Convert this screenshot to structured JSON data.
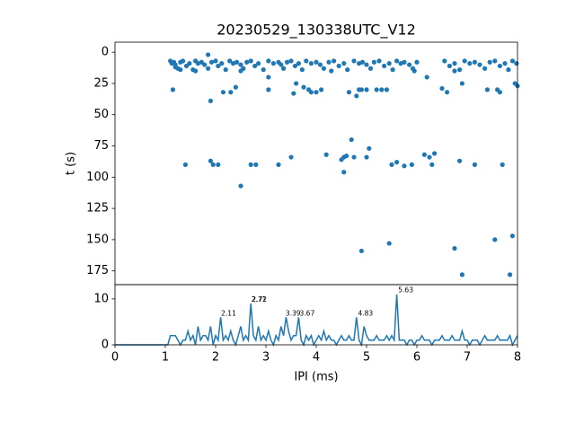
{
  "chart_data": [
    {
      "type": "scatter",
      "title": "20230529_130338UTC_V12",
      "ylabel": "t (s)",
      "color": "#1f77b4",
      "xlim": [
        0,
        8
      ],
      "ylim": [
        186,
        -8
      ],
      "yticks": [
        0,
        25,
        50,
        75,
        100,
        125,
        150,
        175
      ],
      "x": [
        1.1,
        1.13,
        1.17,
        1.2,
        1.25,
        1.3,
        1.35,
        1.42,
        1.48,
        1.55,
        1.6,
        1.65,
        1.72,
        1.78,
        1.85,
        1.92,
        2.0,
        2.05,
        2.12,
        2.2,
        2.28,
        2.35,
        2.42,
        2.5,
        2.55,
        2.62,
        2.7,
        2.78,
        2.85,
        2.95,
        3.05,
        3.15,
        3.25,
        3.3,
        3.35,
        3.42,
        3.5,
        3.58,
        3.65,
        3.72,
        3.8,
        3.9,
        4.0,
        4.08,
        4.15,
        4.25,
        4.35,
        4.45,
        4.55,
        4.62,
        4.75,
        4.85,
        4.92,
        5.0,
        5.08,
        5.15,
        5.25,
        5.35,
        5.45,
        5.52,
        5.6,
        5.68,
        5.75,
        5.85,
        5.92,
        6.0,
        6.55,
        6.65,
        6.75,
        6.85,
        6.95,
        7.05,
        7.15,
        7.25,
        7.35,
        7.45,
        7.55,
        7.65,
        7.75,
        7.82,
        7.9,
        7.98,
        1.15,
        1.4,
        1.9,
        1.95,
        2.05,
        1.9,
        1.85,
        2.15,
        2.3,
        2.4,
        2.5,
        2.7,
        2.8,
        3.05,
        3.25,
        3.5,
        3.75,
        3.85,
        3.9,
        4.0,
        4.1,
        4.2,
        4.5,
        4.55,
        4.6,
        4.55,
        4.7,
        4.75,
        4.8,
        4.85,
        4.9,
        5.0,
        5.05,
        4.9,
        5.0,
        5.2,
        5.3,
        5.4,
        5.45,
        5.5,
        5.6,
        5.75,
        5.9,
        6.15,
        6.25,
        6.3,
        6.35,
        6.5,
        6.6,
        6.75,
        6.85,
        6.9,
        7.15,
        7.4,
        7.55,
        7.6,
        7.65,
        7.7,
        7.85,
        7.9,
        8.0,
        7.95,
        4.65,
        6.2,
        6.9,
        6.75,
        5.95,
        4.3,
        3.6,
        3.55,
        3.05,
        2.5,
        1.6,
        1.2,
        1.3
      ],
      "values": [
        7,
        9,
        8,
        10,
        13,
        8,
        7,
        11,
        9,
        14,
        7,
        9,
        8,
        10,
        13,
        8,
        7,
        11,
        9,
        14,
        7,
        9,
        8,
        10,
        13,
        8,
        7,
        11,
        9,
        14,
        7,
        9,
        8,
        10,
        13,
        8,
        7,
        11,
        9,
        14,
        7,
        9,
        8,
        10,
        13,
        8,
        7,
        11,
        9,
        14,
        7,
        9,
        8,
        10,
        13,
        8,
        7,
        11,
        9,
        14,
        7,
        9,
        8,
        10,
        13,
        8,
        7,
        11,
        9,
        14,
        7,
        9,
        8,
        10,
        13,
        8,
        7,
        11,
        9,
        14,
        7,
        9,
        30,
        90,
        87,
        90,
        90,
        39,
        2,
        32,
        32,
        28,
        107,
        90,
        90,
        30,
        90,
        84,
        28,
        30,
        32,
        32,
        30,
        82,
        86,
        84,
        83,
        96,
        70,
        84,
        35,
        30,
        159,
        84,
        77,
        30,
        30,
        30,
        30,
        30,
        153,
        90,
        88,
        91,
        90,
        82,
        84,
        90,
        81,
        29,
        32,
        157,
        87,
        178,
        90,
        30,
        150,
        30,
        32,
        90,
        178,
        147,
        27,
        25,
        32,
        20,
        25,
        15,
        15,
        15,
        25,
        33,
        20,
        15,
        15,
        12,
        14
      ]
    },
    {
      "type": "line",
      "xlabel": "IPI (ms)",
      "color": "#1f77b4",
      "xlim": [
        0,
        8
      ],
      "xticks": [
        0,
        1,
        2,
        3,
        4,
        5,
        6,
        7,
        8
      ],
      "ylim": [
        0,
        13.1
      ],
      "yticks": [
        0,
        10
      ],
      "x": [
        0,
        1.05,
        1.1,
        1.15,
        1.2,
        1.25,
        1.3,
        1.35,
        1.4,
        1.45,
        1.5,
        1.55,
        1.6,
        1.65,
        1.7,
        1.75,
        1.8,
        1.85,
        1.9,
        1.95,
        2.0,
        2.05,
        2.1,
        2.15,
        2.2,
        2.25,
        2.3,
        2.35,
        2.4,
        2.45,
        2.5,
        2.55,
        2.6,
        2.65,
        2.7,
        2.75,
        2.8,
        2.85,
        2.9,
        2.95,
        3.0,
        3.05,
        3.1,
        3.15,
        3.2,
        3.25,
        3.3,
        3.35,
        3.4,
        3.45,
        3.5,
        3.55,
        3.6,
        3.65,
        3.7,
        3.75,
        3.8,
        3.85,
        3.9,
        3.95,
        4.0,
        4.05,
        4.1,
        4.15,
        4.2,
        4.25,
        4.3,
        4.35,
        4.4,
        4.45,
        4.5,
        4.55,
        4.6,
        4.65,
        4.7,
        4.75,
        4.8,
        4.85,
        4.9,
        4.95,
        5.0,
        5.05,
        5.1,
        5.15,
        5.2,
        5.25,
        5.3,
        5.35,
        5.4,
        5.45,
        5.5,
        5.55,
        5.6,
        5.65,
        5.7,
        5.75,
        5.8,
        5.85,
        5.9,
        5.95,
        6.0,
        6.05,
        6.1,
        6.15,
        6.2,
        6.25,
        6.3,
        6.35,
        6.4,
        6.45,
        6.5,
        6.55,
        6.6,
        6.65,
        6.7,
        6.75,
        6.8,
        6.85,
        6.9,
        6.95,
        7.0,
        7.05,
        7.1,
        7.15,
        7.2,
        7.25,
        7.3,
        7.35,
        7.4,
        7.45,
        7.5,
        7.55,
        7.6,
        7.65,
        7.7,
        7.75,
        7.8,
        7.85,
        7.9,
        7.95,
        8.0
      ],
      "values": [
        0,
        0,
        2,
        2,
        2,
        1,
        0,
        1,
        1,
        3,
        1,
        2,
        0,
        4,
        1,
        2,
        2,
        1,
        4,
        0,
        2,
        1,
        6,
        1,
        2,
        1,
        3,
        1,
        0,
        2,
        4,
        1,
        2,
        1,
        9,
        2,
        1,
        4,
        1,
        2,
        1,
        3,
        1,
        0,
        2,
        1,
        4,
        2,
        6,
        3,
        1,
        2,
        2,
        6,
        1,
        0,
        2,
        1,
        2,
        0,
        1,
        2,
        1,
        3,
        1,
        2,
        1,
        1,
        0,
        1,
        2,
        1,
        1,
        2,
        1,
        1,
        6,
        1,
        0,
        4,
        2,
        1,
        1,
        1,
        2,
        1,
        1,
        1,
        2,
        1,
        2,
        1,
        11,
        1,
        1,
        1,
        0,
        1,
        1,
        0,
        1,
        1,
        2,
        1,
        1,
        1,
        0,
        1,
        1,
        1,
        2,
        1,
        1,
        1,
        2,
        1,
        1,
        1,
        3,
        1,
        1,
        0,
        1,
        1,
        1,
        0,
        1,
        2,
        1,
        1,
        1,
        1,
        2,
        1,
        1,
        1,
        1,
        2,
        0,
        1,
        2
      ],
      "annotations": [
        {
          "x": 2.11,
          "y": 6,
          "text": "2.11"
        },
        {
          "x": 2.71,
          "y": 9,
          "text": "2.71"
        },
        {
          "x": 2.72,
          "y": 9,
          "text": "2.72"
        },
        {
          "x": 3.39,
          "y": 6,
          "text": "3.39"
        },
        {
          "x": 3.67,
          "y": 6,
          "text": "3.67"
        },
        {
          "x": 4.83,
          "y": 6,
          "text": "4.83"
        },
        {
          "x": 5.63,
          "y": 11,
          "text": "5.63"
        }
      ]
    }
  ]
}
